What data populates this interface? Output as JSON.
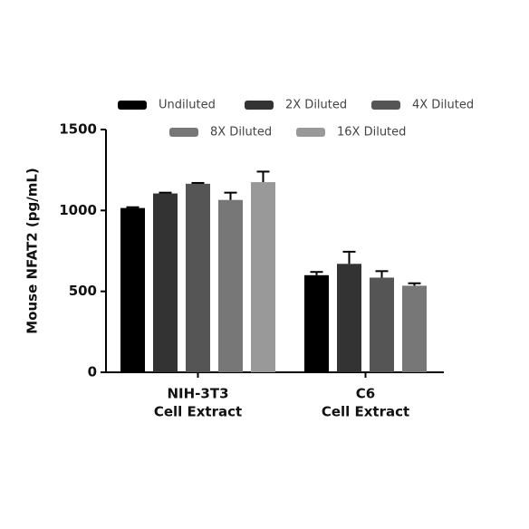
{
  "chart_data": {
    "type": "bar",
    "y_label": "Mouse NFAT2 (pg/mL)",
    "categories": [
      [
        "NIH-3T3",
        "Cell Extract"
      ],
      [
        "C6",
        "Cell Extract"
      ]
    ],
    "series": [
      {
        "name": "Undiluted",
        "color": "#000000",
        "values": [
          1015,
          600
        ],
        "errors": [
          5,
          20
        ]
      },
      {
        "name": "2X Diluted",
        "color": "#333333",
        "values": [
          1105,
          670
        ],
        "errors": [
          5,
          75
        ]
      },
      {
        "name": "4X Diluted",
        "color": "#555555",
        "values": [
          1165,
          585
        ],
        "errors": [
          5,
          40
        ]
      },
      {
        "name": "8X Diluted",
        "color": "#777777",
        "values": [
          1065,
          535
        ],
        "errors": [
          45,
          15
        ]
      },
      {
        "name": "16X Diluted",
        "color": "#999999",
        "values": [
          1175,
          null
        ],
        "errors": [
          65,
          null
        ]
      }
    ],
    "ylim": [
      0,
      1500
    ],
    "yticks": [
      0,
      500,
      1000,
      1500
    ],
    "legend": "top"
  }
}
